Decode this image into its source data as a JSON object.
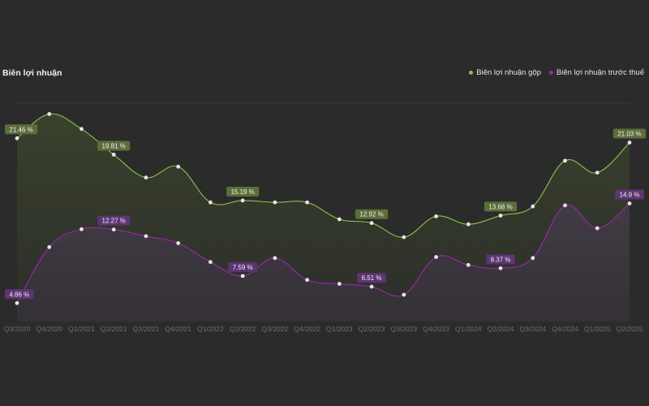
{
  "chart_data": {
    "type": "line",
    "title": "Biên lợi nhuận",
    "categories": [
      "Q3/2020",
      "Q4/2020",
      "Q1/2021",
      "Q2/2021",
      "Q3/2021",
      "Q4/2021",
      "Q1/2022",
      "Q2/2022",
      "Q3/2022",
      "Q4/2022",
      "Q1/2023",
      "Q2/2023",
      "Q3/2023",
      "Q4/2023",
      "Q1/2024",
      "Q2/2024",
      "Q3/2024",
      "Q4/2024",
      "Q1/2025",
      "Q2/2025"
    ],
    "series": [
      {
        "name": "Biên lợi nhuận gộp",
        "color": "#8bc34a",
        "label_bg": "#5b6e3a",
        "values": [
          21.46,
          23.9,
          22.4,
          19.81,
          17.5,
          18.6,
          15.0,
          15.19,
          15.0,
          15.0,
          13.3,
          12.92,
          11.5,
          13.6,
          12.8,
          13.68,
          14.6,
          19.2,
          18.0,
          21.03
        ],
        "labels": {
          "0": "21.46 %",
          "3": "19.81 %",
          "7": "15.19 %",
          "11": "12.92 %",
          "15": "13.68 %",
          "19": "21.03 %"
        }
      },
      {
        "name": "Biên lợi nhuận trước thuế",
        "color": "#9c27b0",
        "label_bg": "#5c3572",
        "values": [
          4.86,
          10.5,
          12.3,
          12.27,
          11.6,
          10.9,
          9.0,
          7.59,
          9.4,
          7.2,
          6.8,
          6.51,
          5.7,
          9.5,
          8.7,
          8.37,
          9.4,
          14.7,
          12.4,
          14.9
        ],
        "labels": {
          "0": "4.86 %",
          "3": "12.27 %",
          "7": "7.59 %",
          "11": "6.51 %",
          "15": "8.37 %",
          "19": "14.9 %"
        }
      }
    ],
    "ylim": [
      3,
      25
    ],
    "grid": true,
    "legend_position": "top-right"
  }
}
